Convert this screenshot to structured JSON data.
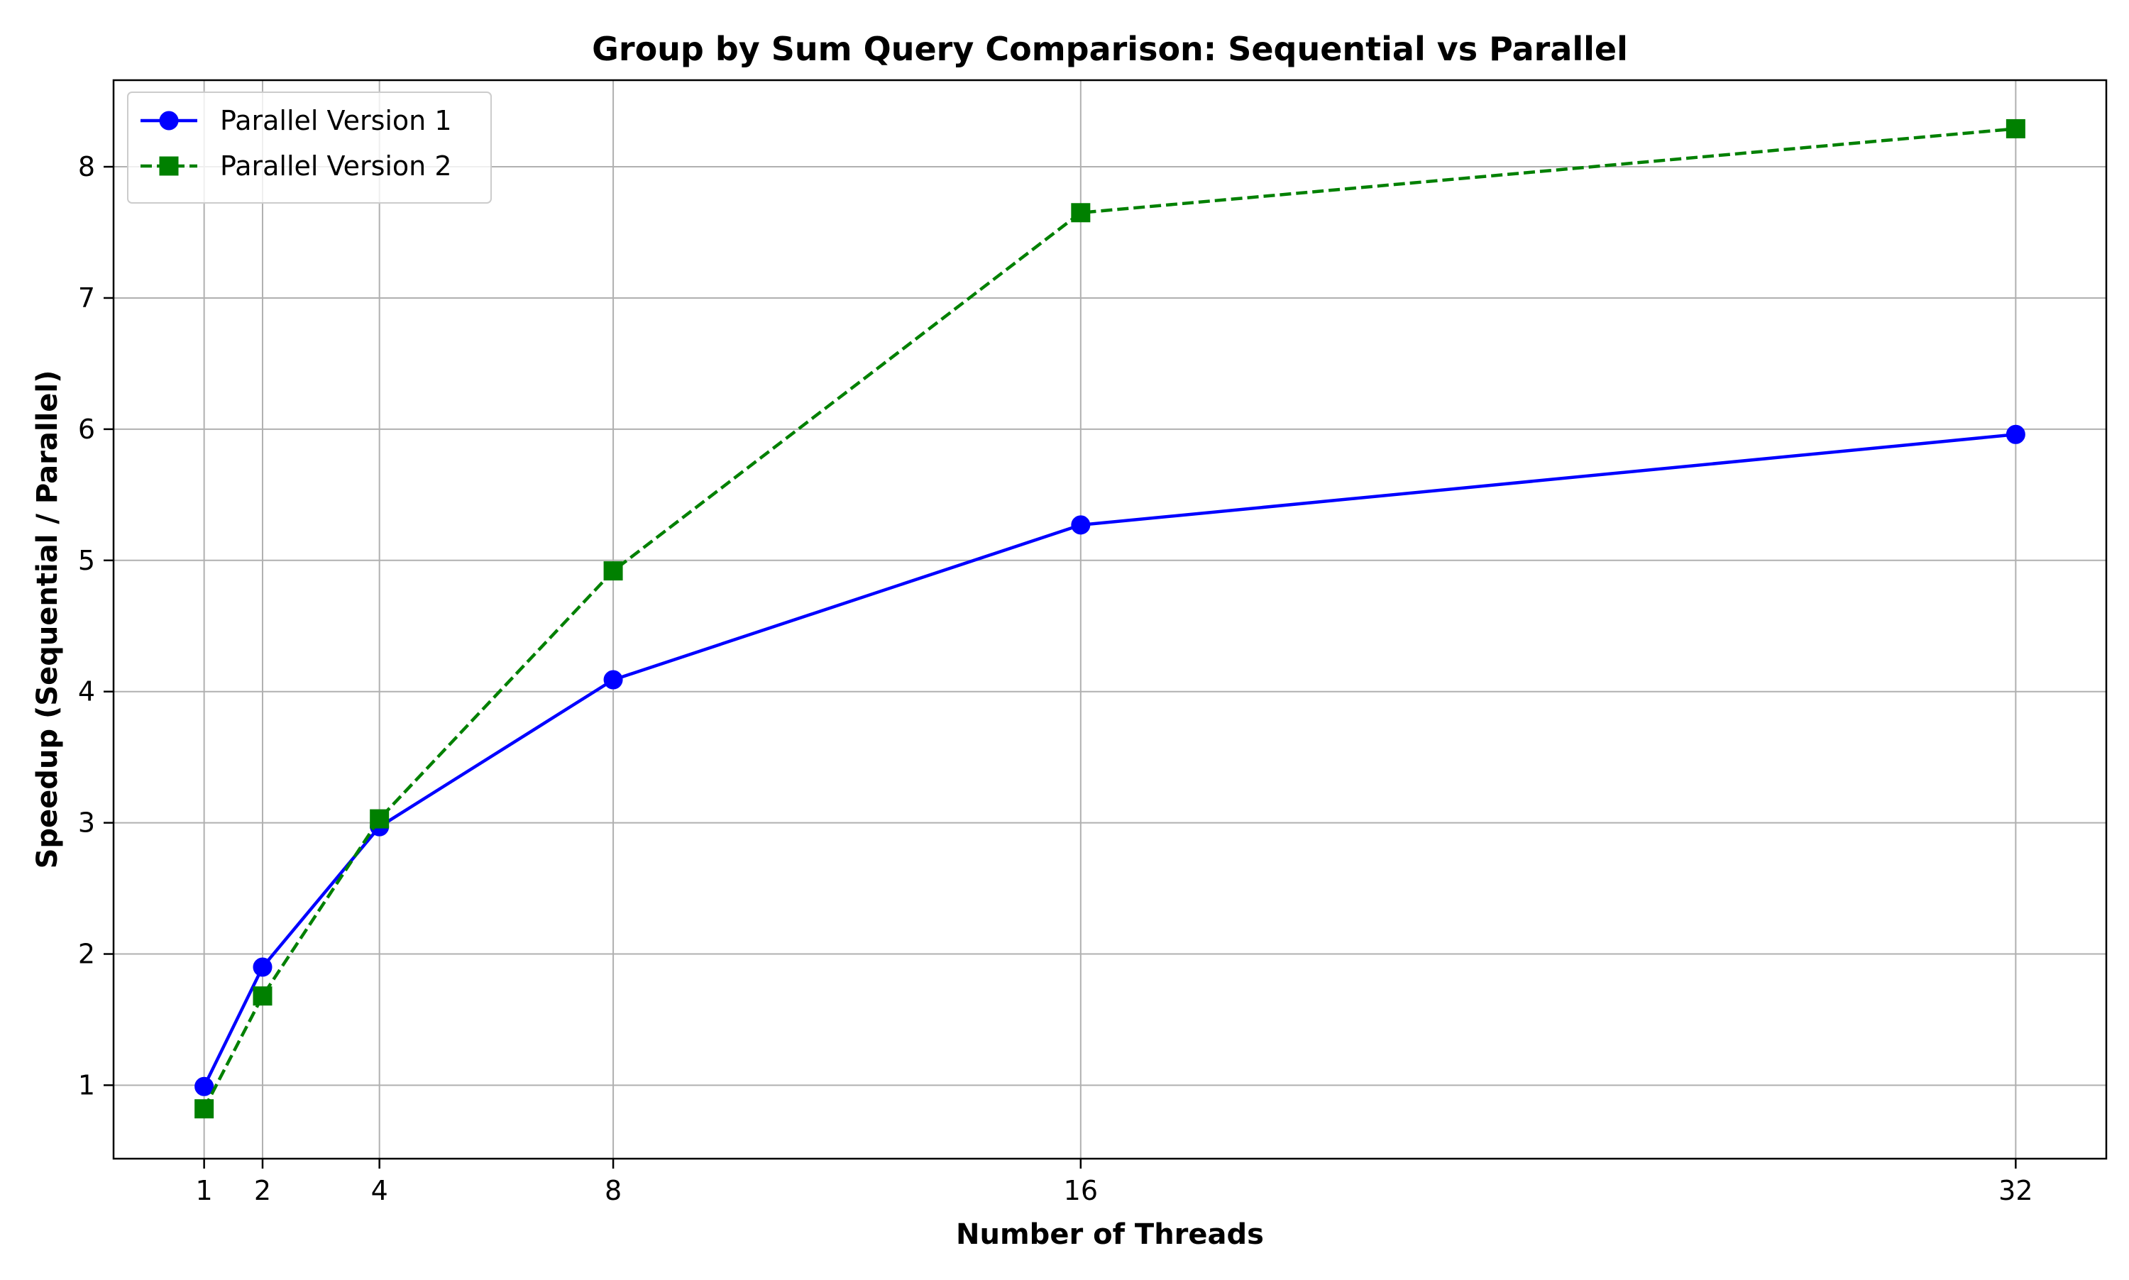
{
  "chart_data": {
    "type": "line",
    "title": "Group by Sum Query Comparison: Sequential vs Parallel",
    "xlabel": "Number of Threads",
    "ylabel": "Speedup (Sequential / Parallel)",
    "x": [
      1,
      2,
      4,
      8,
      16,
      32
    ],
    "x_tick_labels": [
      "1",
      "2",
      "4",
      "8",
      "16",
      "32"
    ],
    "y_ticks": [
      1,
      2,
      3,
      4,
      5,
      6,
      7,
      8
    ],
    "y_tick_labels": [
      "1",
      "2",
      "3",
      "4",
      "5",
      "6",
      "7",
      "8"
    ],
    "xlim": [
      -0.55,
      33.55
    ],
    "ylim": [
      0.44,
      8.66
    ],
    "grid": true,
    "legend_position": "top-left",
    "series": [
      {
        "name": "Parallel Version 1",
        "values": [
          0.99,
          1.9,
          2.97,
          4.09,
          5.27,
          5.96
        ],
        "color": "#0000ff",
        "line_style": "solid",
        "marker": "circle"
      },
      {
        "name": "Parallel Version 2",
        "values": [
          0.82,
          1.68,
          3.03,
          4.92,
          7.65,
          8.29
        ],
        "color": "#008000",
        "line_style": "dashed",
        "marker": "square"
      }
    ]
  }
}
